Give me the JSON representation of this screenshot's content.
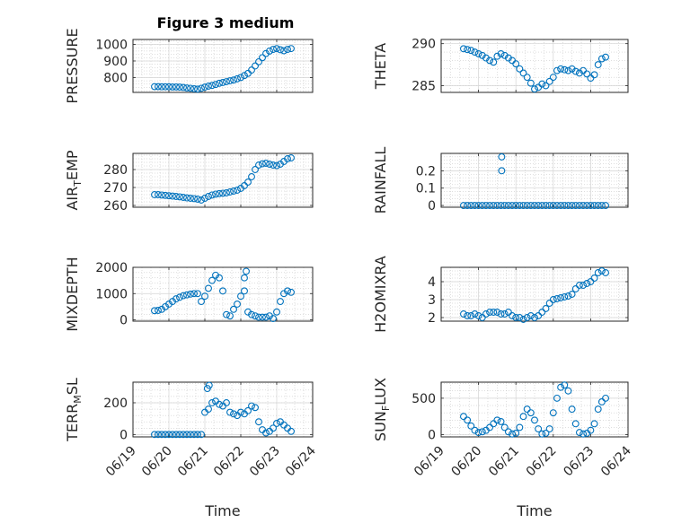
{
  "figure": {
    "title": "Figure 3 medium",
    "xlabel": "Time",
    "xticks": [
      "06/19",
      "06/20",
      "06/21",
      "06/22",
      "06/23",
      "06/24"
    ],
    "marker_color": "#0072BD"
  },
  "chart_data": [
    {
      "type": "scatter",
      "ylabel": "PRESSURE",
      "yticks": [
        800,
        900,
        1000
      ],
      "ylim": [
        710,
        1030
      ],
      "xlim": [
        0,
        5
      ],
      "x": [
        0.6,
        0.7,
        0.8,
        0.9,
        1.0,
        1.1,
        1.2,
        1.3,
        1.4,
        1.5,
        1.6,
        1.7,
        1.8,
        1.9,
        2.0,
        2.1,
        2.2,
        2.3,
        2.4,
        2.5,
        2.6,
        2.7,
        2.8,
        2.9,
        3.0,
        3.1,
        3.2,
        3.3,
        3.4,
        3.5,
        3.6,
        3.7,
        3.8,
        3.9,
        4.0,
        4.1,
        4.2,
        4.3,
        4.4
      ],
      "y": [
        745,
        745,
        744,
        744,
        744,
        743,
        743,
        742,
        740,
        737,
        735,
        732,
        730,
        735,
        742,
        748,
        752,
        758,
        765,
        770,
        775,
        780,
        785,
        792,
        800,
        812,
        825,
        845,
        870,
        895,
        920,
        945,
        960,
        970,
        975,
        968,
        962,
        970,
        975
      ]
    },
    {
      "type": "scatter",
      "ylabel": "THETA",
      "yticks": [
        285,
        290
      ],
      "ylim": [
        284.2,
        290.5
      ],
      "xlim": [
        0,
        5
      ],
      "x": [
        0.6,
        0.7,
        0.8,
        0.9,
        1.0,
        1.1,
        1.2,
        1.3,
        1.4,
        1.5,
        1.6,
        1.7,
        1.8,
        1.9,
        2.0,
        2.1,
        2.2,
        2.3,
        2.4,
        2.5,
        2.6,
        2.7,
        2.8,
        2.9,
        3.0,
        3.1,
        3.2,
        3.3,
        3.4,
        3.5,
        3.6,
        3.7,
        3.8,
        3.9,
        4.0,
        4.1,
        4.2,
        4.3,
        4.4
      ],
      "y": [
        289.4,
        289.3,
        289.2,
        289.0,
        288.8,
        288.6,
        288.3,
        288.0,
        287.8,
        288.5,
        288.8,
        288.6,
        288.3,
        288.0,
        287.6,
        287.0,
        286.5,
        286.0,
        285.3,
        284.6,
        284.8,
        285.2,
        285.0,
        285.5,
        286.0,
        286.8,
        287.0,
        286.9,
        286.8,
        287.0,
        286.7,
        286.5,
        286.8,
        286.4,
        285.9,
        286.3,
        287.5,
        288.2,
        288.4
      ]
    },
    {
      "type": "scatter",
      "ylabel": "AIR_TEMP",
      "ylabel_main": "AIR",
      "ylabel_sub": "T",
      "ylabel_rest": "EMP",
      "yticks": [
        260,
        270,
        280
      ],
      "ylim": [
        259,
        289
      ],
      "xlim": [
        0,
        5
      ],
      "x": [
        0.6,
        0.7,
        0.8,
        0.9,
        1.0,
        1.1,
        1.2,
        1.3,
        1.4,
        1.5,
        1.6,
        1.7,
        1.8,
        1.9,
        2.0,
        2.1,
        2.2,
        2.3,
        2.4,
        2.5,
        2.6,
        2.7,
        2.8,
        2.9,
        3.0,
        3.1,
        3.2,
        3.3,
        3.4,
        3.5,
        3.6,
        3.7,
        3.8,
        3.9,
        4.0,
        4.1,
        4.2,
        4.3,
        4.4
      ],
      "y": [
        266.0,
        266.0,
        265.8,
        265.6,
        265.4,
        265.2,
        265.0,
        264.8,
        264.5,
        264.2,
        264.0,
        263.8,
        263.5,
        263.0,
        264.0,
        265.0,
        265.8,
        266.3,
        266.6,
        266.8,
        267.0,
        267.5,
        268.0,
        268.5,
        269.5,
        271.0,
        273.0,
        276.0,
        280.0,
        282.5,
        283.2,
        283.5,
        283.0,
        282.5,
        282.2,
        283.0,
        284.5,
        286.0,
        286.5
      ]
    },
    {
      "type": "scatter",
      "ylabel": "RAINFALL",
      "yticks": [
        0,
        0.1,
        0.2
      ],
      "ylim": [
        -0.01,
        0.3
      ],
      "xlim": [
        0,
        5
      ],
      "x": [
        0.6,
        0.7,
        0.8,
        0.9,
        1.0,
        1.1,
        1.2,
        1.3,
        1.4,
        1.5,
        1.6,
        1.7,
        1.8,
        1.9,
        2.0,
        2.1,
        2.2,
        2.3,
        2.4,
        2.5,
        2.6,
        2.7,
        2.8,
        2.9,
        3.0,
        3.1,
        3.2,
        3.3,
        3.4,
        3.5,
        3.6,
        3.7,
        3.8,
        3.9,
        4.0,
        4.1,
        4.2,
        4.3,
        4.4,
        1.62,
        1.62
      ],
      "y": [
        0,
        0,
        0,
        0,
        0,
        0,
        0,
        0,
        0,
        0,
        0,
        0,
        0,
        0,
        0,
        0,
        0,
        0,
        0,
        0,
        0,
        0,
        0,
        0,
        0,
        0,
        0,
        0,
        0,
        0,
        0,
        0,
        0,
        0,
        0,
        0,
        0,
        0,
        0,
        0.2,
        0.28
      ]
    },
    {
      "type": "scatter",
      "ylabel": "MIXDEPTH",
      "yticks": [
        0,
        1000,
        2000
      ],
      "ylim": [
        -50,
        2000
      ],
      "xlim": [
        0,
        5
      ],
      "x": [
        0.6,
        0.7,
        0.8,
        0.9,
        1.0,
        1.1,
        1.2,
        1.3,
        1.4,
        1.5,
        1.6,
        1.7,
        1.8,
        1.9,
        2.0,
        2.1,
        2.2,
        2.3,
        2.4,
        2.5,
        2.6,
        2.7,
        2.8,
        2.9,
        3.0,
        3.1,
        3.2,
        3.3,
        3.4,
        3.5,
        3.6,
        3.7,
        3.8,
        3.9,
        4.0,
        4.1,
        4.2,
        4.3,
        4.4,
        3.1,
        3.15
      ],
      "y": [
        350,
        360,
        400,
        500,
        600,
        700,
        800,
        860,
        920,
        950,
        980,
        1000,
        1000,
        700,
        900,
        1200,
        1500,
        1700,
        1600,
        1100,
        200,
        150,
        400,
        600,
        900,
        1100,
        300,
        200,
        150,
        100,
        100,
        100,
        150,
        50,
        300,
        700,
        1000,
        1100,
        1050,
        1600,
        1850
      ]
    },
    {
      "type": "scatter",
      "ylabel": "H2OMIXRA",
      "yticks": [
        2,
        3,
        4
      ],
      "ylim": [
        1.8,
        4.8
      ],
      "xlim": [
        0,
        5
      ],
      "x": [
        0.6,
        0.7,
        0.8,
        0.9,
        1.0,
        1.1,
        1.2,
        1.3,
        1.4,
        1.5,
        1.6,
        1.7,
        1.8,
        1.9,
        2.0,
        2.1,
        2.2,
        2.3,
        2.4,
        2.5,
        2.6,
        2.7,
        2.8,
        2.9,
        3.0,
        3.1,
        3.2,
        3.3,
        3.4,
        3.5,
        3.6,
        3.7,
        3.8,
        3.9,
        4.0,
        4.1,
        4.2,
        4.3,
        4.4
      ],
      "y": [
        2.2,
        2.1,
        2.1,
        2.2,
        2.1,
        2.0,
        2.2,
        2.3,
        2.3,
        2.3,
        2.2,
        2.2,
        2.3,
        2.1,
        2.0,
        2.0,
        1.9,
        2.0,
        2.1,
        2.0,
        2.1,
        2.3,
        2.5,
        2.8,
        3.0,
        3.05,
        3.1,
        3.15,
        3.2,
        3.3,
        3.6,
        3.8,
        3.8,
        3.9,
        4.0,
        4.2,
        4.5,
        4.6,
        4.5
      ]
    },
    {
      "type": "scatter",
      "ylabel": "TERR_MSL",
      "ylabel_main": "TERR",
      "ylabel_sub": "M",
      "ylabel_rest": "SL",
      "yticks": [
        0,
        200
      ],
      "ylim": [
        -15,
        330
      ],
      "xlim": [
        0,
        5
      ],
      "x": [
        0.6,
        0.7,
        0.8,
        0.9,
        1.0,
        1.1,
        1.2,
        1.3,
        1.4,
        1.5,
        1.6,
        1.7,
        1.8,
        1.9,
        2.0,
        2.1,
        2.2,
        2.3,
        2.4,
        2.5,
        2.6,
        2.7,
        2.8,
        2.9,
        3.0,
        3.1,
        3.2,
        3.3,
        3.4,
        3.5,
        3.6,
        3.7,
        3.8,
        3.9,
        4.0,
        4.1,
        4.2,
        4.3,
        4.4,
        2.07,
        2.12
      ],
      "y": [
        0,
        0,
        0,
        0,
        0,
        0,
        0,
        0,
        0,
        0,
        0,
        0,
        0,
        0,
        140,
        160,
        200,
        210,
        190,
        180,
        200,
        140,
        130,
        120,
        140,
        130,
        150,
        180,
        170,
        80,
        30,
        10,
        20,
        40,
        70,
        80,
        60,
        40,
        20,
        290,
        310
      ]
    },
    {
      "type": "scatter",
      "ylabel": "SUN_FLUX",
      "ylabel_main": "SUN",
      "ylabel_sub": "F",
      "ylabel_rest": "LUX",
      "yticks": [
        0,
        500
      ],
      "ylim": [
        -30,
        720
      ],
      "xlim": [
        0,
        5
      ],
      "x": [
        0.6,
        0.7,
        0.8,
        0.9,
        1.0,
        1.1,
        1.2,
        1.3,
        1.4,
        1.5,
        1.6,
        1.7,
        1.8,
        1.9,
        2.0,
        2.1,
        2.2,
        2.3,
        2.4,
        2.5,
        2.6,
        2.7,
        2.8,
        2.9,
        3.0,
        3.1,
        3.2,
        3.3,
        3.4,
        3.5,
        3.6,
        3.7,
        3.8,
        3.9,
        4.0,
        4.1,
        4.2,
        4.3,
        4.4
      ],
      "y": [
        250,
        200,
        120,
        60,
        30,
        40,
        60,
        100,
        150,
        200,
        180,
        100,
        40,
        10,
        20,
        100,
        250,
        350,
        300,
        200,
        80,
        10,
        20,
        80,
        300,
        500,
        650,
        680,
        600,
        350,
        150,
        30,
        10,
        20,
        60,
        150,
        350,
        450,
        500
      ]
    }
  ]
}
